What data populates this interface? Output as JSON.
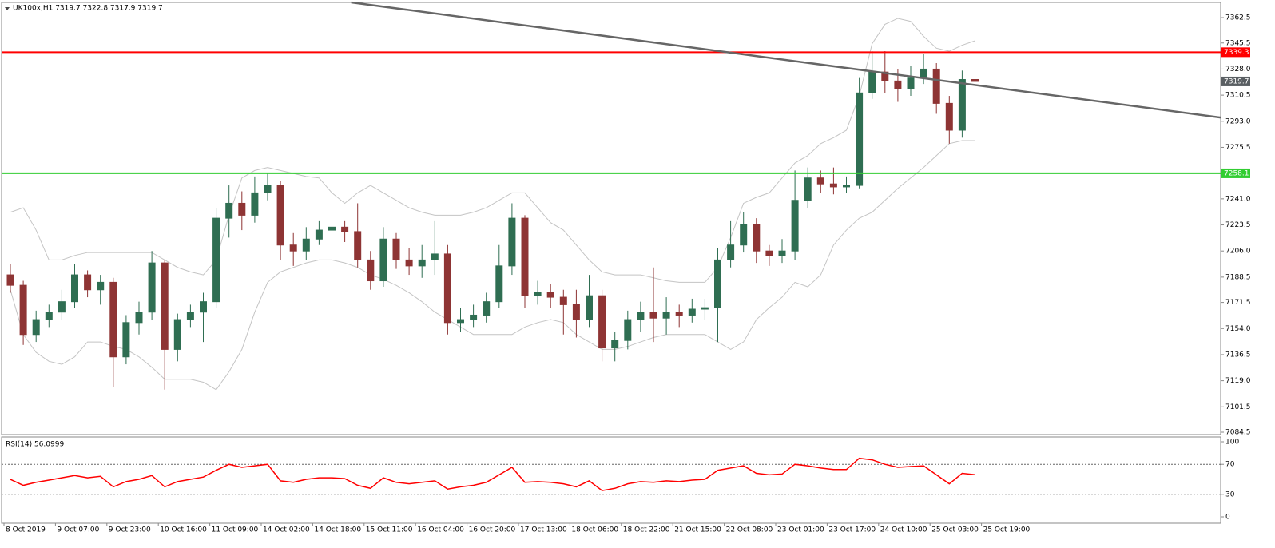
{
  "chart_data": [
    {
      "type": "candlestick",
      "title": "UK100x,H1  7319.7 7322.8 7317.9 7319.7",
      "x_labels": [
        "8 Oct 2019",
        "9 Oct 07:00",
        "9 Oct 23:00",
        "10 Oct 16:00",
        "11 Oct 09:00",
        "14 Oct 02:00",
        "14 Oct 18:00",
        "15 Oct 11:00",
        "16 Oct 04:00",
        "16 Oct 20:00",
        "17 Oct 13:00",
        "18 Oct 06:00",
        "18 Oct 22:00",
        "21 Oct 15:00",
        "22 Oct 08:00",
        "23 Oct 01:00",
        "23 Oct 17:00",
        "24 Oct 10:00",
        "25 Oct 03:00",
        "25 Oct 19:00"
      ],
      "open": [
        7190,
        7183,
        7150,
        7160,
        7165,
        7172,
        7190,
        7180,
        7185,
        7135,
        7158,
        7165,
        7198,
        7140,
        7160,
        7165,
        7172,
        7228,
        7238,
        7230,
        7245,
        7250,
        7210,
        7206,
        7214,
        7220,
        7222,
        7219,
        7200,
        7186,
        7214,
        7200,
        7196,
        7200,
        7204,
        7158,
        7160,
        7163,
        7172,
        7196,
        7228,
        7176,
        7178,
        7175,
        7170,
        7160,
        7176,
        7141,
        7146,
        7160,
        7165,
        7161,
        7165,
        7163,
        7167,
        7168,
        7200,
        7210,
        7224,
        7206,
        7203,
        7206,
        7240,
        7255,
        7251,
        7249,
        7250,
        7312,
        7326,
        7320,
        7315,
        7322,
        7328,
        7305,
        7287,
        7321
      ],
      "high": [
        7197,
        7186,
        7166,
        7170,
        7180,
        7197,
        7193,
        7190,
        7188,
        7163,
        7172,
        7206,
        7200,
        7164,
        7170,
        7178,
        7235,
        7250,
        7246,
        7256,
        7258,
        7253,
        7218,
        7222,
        7226,
        7228,
        7226,
        7238,
        7206,
        7222,
        7218,
        7208,
        7210,
        7226,
        7210,
        7168,
        7170,
        7178,
        7210,
        7238,
        7230,
        7186,
        7184,
        7180,
        7180,
        7190,
        7180,
        7152,
        7166,
        7172,
        7195,
        7175,
        7170,
        7174,
        7174,
        7208,
        7226,
        7232,
        7228,
        7210,
        7214,
        7260,
        7262,
        7260,
        7262,
        7256,
        7322,
        7340,
        7340,
        7328,
        7330,
        7338,
        7332,
        7310,
        7327,
        7322.8
      ],
      "low": [
        7178,
        7143,
        7145,
        7155,
        7160,
        7168,
        7175,
        7170,
        7115,
        7130,
        7150,
        7160,
        7113,
        7132,
        7155,
        7145,
        7168,
        7215,
        7220,
        7225,
        7240,
        7200,
        7196,
        7200,
        7210,
        7214,
        7212,
        7195,
        7180,
        7182,
        7194,
        7190,
        7188,
        7190,
        7150,
        7152,
        7155,
        7158,
        7168,
        7190,
        7168,
        7170,
        7168,
        7150,
        7148,
        7155,
        7132,
        7132,
        7140,
        7152,
        7145,
        7150,
        7155,
        7158,
        7160,
        7145,
        7195,
        7205,
        7198,
        7196,
        7198,
        7200,
        7235,
        7245,
        7244,
        7245,
        7248,
        7308,
        7312,
        7306,
        7310,
        7318,
        7298,
        7278,
        7282,
        7317.9
      ],
      "close": [
        7183,
        7150,
        7160,
        7165,
        7172,
        7190,
        7180,
        7185,
        7135,
        7158,
        7165,
        7198,
        7140,
        7160,
        7165,
        7172,
        7228,
        7238,
        7230,
        7245,
        7250,
        7210,
        7206,
        7214,
        7220,
        7222,
        7219,
        7200,
        7186,
        7214,
        7200,
        7196,
        7200,
        7204,
        7158,
        7160,
        7163,
        7172,
        7196,
        7228,
        7176,
        7178,
        7175,
        7170,
        7160,
        7176,
        7141,
        7146,
        7160,
        7165,
        7161,
        7165,
        7163,
        7167,
        7168,
        7200,
        7210,
        7224,
        7206,
        7203,
        7206,
        7240,
        7255,
        7251,
        7249,
        7250,
        7312,
        7326,
        7320,
        7315,
        7322,
        7328,
        7305,
        7287,
        7321,
        7319.7
      ],
      "bb_upper": [
        7232,
        7235,
        7220,
        7200,
        7200,
        7203,
        7205,
        7205,
        7205,
        7205,
        7205,
        7205,
        7200,
        7195,
        7192,
        7190,
        7200,
        7230,
        7255,
        7260,
        7262,
        7260,
        7258,
        7256,
        7255,
        7245,
        7238,
        7245,
        7250,
        7245,
        7240,
        7235,
        7232,
        7230,
        7230,
        7230,
        7232,
        7235,
        7240,
        7245,
        7245,
        7235,
        7225,
        7220,
        7210,
        7200,
        7192,
        7190,
        7190,
        7190,
        7188,
        7186,
        7185,
        7185,
        7185,
        7195,
        7215,
        7238,
        7242,
        7245,
        7255,
        7265,
        7270,
        7278,
        7282,
        7287,
        7310,
        7345,
        7358,
        7362,
        7360,
        7350,
        7342,
        7340,
        7344,
        7347
      ],
      "bb_lower": [
        7180,
        7150,
        7138,
        7132,
        7130,
        7135,
        7145,
        7145,
        7142,
        7140,
        7135,
        7128,
        7120,
        7120,
        7120,
        7118,
        7113,
        7125,
        7140,
        7165,
        7185,
        7192,
        7195,
        7198,
        7200,
        7200,
        7198,
        7195,
        7190,
        7187,
        7183,
        7178,
        7172,
        7165,
        7160,
        7155,
        7150,
        7150,
        7150,
        7150,
        7155,
        7158,
        7160,
        7158,
        7150,
        7145,
        7140,
        7140,
        7142,
        7145,
        7148,
        7150,
        7150,
        7150,
        7150,
        7145,
        7140,
        7145,
        7160,
        7168,
        7175,
        7185,
        7182,
        7190,
        7210,
        7220,
        7228,
        7232,
        7240,
        7248,
        7255,
        7262,
        7270,
        7278,
        7280,
        7280
      ],
      "up_color": "#2f6e52",
      "down_color": "#8e3434",
      "band_color": "#c4c4c4",
      "ylim": [
        7082.9,
        7372.7
      ],
      "yticks": [
        7084.5,
        7101.5,
        {
          "value": 7119,
          "label": "7119.0"
        },
        7136.5,
        {
          "value": 7154,
          "label": "7154.0"
        },
        7171.5,
        7188.5,
        {
          "value": 7206,
          "label": "7206.0"
        },
        7223.5,
        {
          "value": 7241,
          "label": "7241.0"
        },
        7275.5,
        {
          "value": 7293,
          "label": "7293.0"
        },
        7310.5,
        {
          "value": 7328,
          "label": "7328.0"
        },
        7345.5,
        7362.5
      ],
      "hlines": [
        {
          "value": 7339.3,
          "color": "#ff0000"
        },
        {
          "value": 7258.1,
          "color": "#32cd32"
        }
      ],
      "trendline": {
        "x": [
          26.5,
          94.1
        ],
        "values": [
          7372.7,
          7295.5
        ],
        "color": "#666666"
      },
      "last_price": 7319.7
    },
    {
      "type": "line",
      "title": "RSI(14) 56.0999",
      "color": "#ff0000",
      "values": [
        50,
        42,
        46,
        49,
        52,
        55,
        52,
        54,
        40,
        47,
        50,
        55,
        40,
        47,
        50,
        53,
        62,
        70,
        66,
        68,
        70,
        48,
        46,
        50,
        52,
        52,
        51,
        42,
        38,
        52,
        46,
        44,
        46,
        48,
        37,
        40,
        42,
        46,
        56,
        66,
        46,
        47,
        46,
        44,
        40,
        48,
        35,
        38,
        44,
        47,
        46,
        48,
        47,
        49,
        50,
        62,
        65,
        68,
        58,
        56,
        57,
        70,
        68,
        65,
        63,
        63,
        78,
        76,
        70,
        66,
        67,
        68,
        56,
        44,
        58,
        56.0999
      ],
      "ylim": [
        -8.5,
        106.4
      ],
      "yticks": [
        0,
        30,
        70,
        100
      ],
      "levels": [
        30,
        70
      ]
    }
  ]
}
